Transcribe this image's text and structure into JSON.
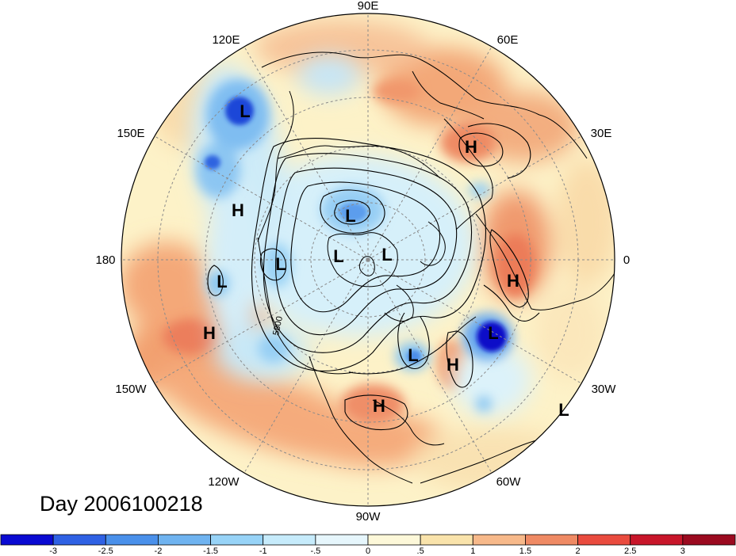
{
  "map": {
    "projection": "north-polar-stereographic",
    "hemisphere": "Northern",
    "day_label": "Day 2006100218",
    "longitude_labels": [
      {
        "text": "90E",
        "lon": 90
      },
      {
        "text": "60E",
        "lon": 60
      },
      {
        "text": "30E",
        "lon": 30
      },
      {
        "text": "0",
        "lon": 0
      },
      {
        "text": "30W",
        "lon": -30
      },
      {
        "text": "60W",
        "lon": -60
      },
      {
        "text": "90W",
        "lon": -90
      },
      {
        "text": "120W",
        "lon": -120
      },
      {
        "text": "150W",
        "lon": -150
      },
      {
        "text": "180",
        "lon": 180
      },
      {
        "text": "150E",
        "lon": 150
      },
      {
        "text": "120E",
        "lon": 120
      }
    ],
    "pressure_centers": [
      {
        "type": "L",
        "location": "Kamchatka / Sea of Okhotsk"
      },
      {
        "type": "H",
        "location": "Northern Europe / Baltic"
      },
      {
        "type": "H",
        "location": "Bering Sea"
      },
      {
        "type": "L",
        "location": "Kara Sea"
      },
      {
        "type": "L",
        "location": "Canadian Arctic"
      },
      {
        "type": "L",
        "location": "Arctic Ocean near pole"
      },
      {
        "type": "L",
        "location": "East Siberian Sea"
      },
      {
        "type": "H",
        "location": "British Isles / North Sea"
      },
      {
        "type": "L",
        "location": "Central North Pacific"
      },
      {
        "type": "H",
        "location": "Northeast Pacific"
      },
      {
        "type": "L",
        "location": "Central North Atlantic"
      },
      {
        "type": "L",
        "location": "Great Lakes / Hudson Bay"
      },
      {
        "type": "H",
        "location": "Western North Atlantic"
      },
      {
        "type": "H",
        "location": "Southern United States"
      },
      {
        "type": "L",
        "location": "Subtropical Atlantic"
      }
    ],
    "contour_labels": [
      "5800"
    ]
  },
  "colorbar": {
    "labels": [
      "-3",
      "-2.5",
      "-2",
      "-1.5",
      "-1",
      "-.5",
      "0",
      ".5",
      "1",
      "1.5",
      "2",
      "2.5",
      "3"
    ],
    "colors": [
      "#0a0ad2",
      "#2f61e4",
      "#4a90ea",
      "#6fb3f0",
      "#97d3f7",
      "#c6ebfb",
      "#e6f6fc",
      "#fdf8d9",
      "#f9e3ab",
      "#f7b98a",
      "#ef8a64",
      "#e94b3e",
      "#c8162a",
      "#9b0a1f"
    ]
  }
}
